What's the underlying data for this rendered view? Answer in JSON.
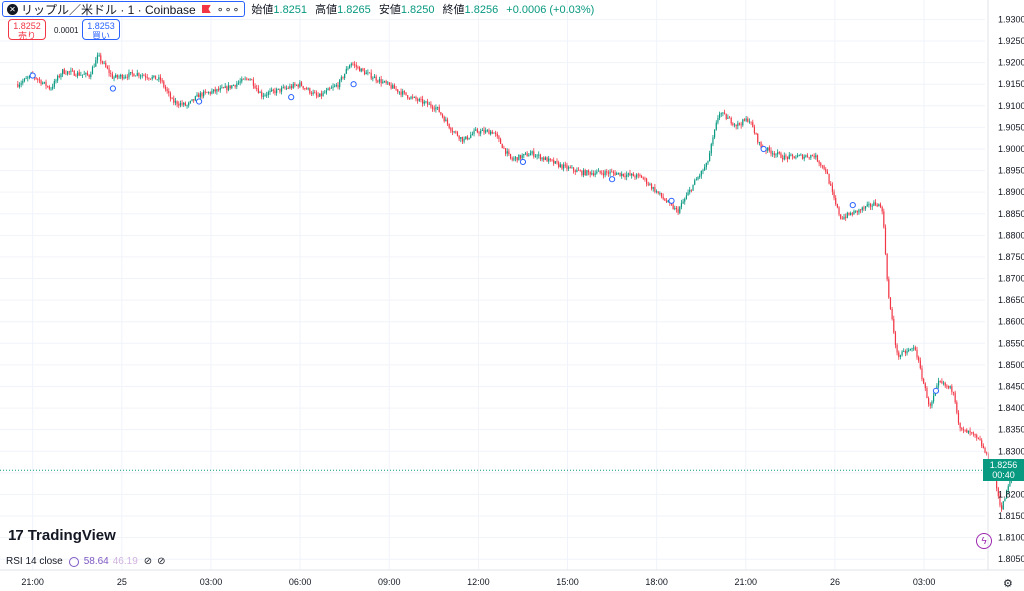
{
  "header": {
    "symbol_title": "リップル／米ドル · 1 · Coinbase",
    "more": "∘∘∘",
    "ohlc": [
      {
        "label": "始値",
        "value": "1.8251"
      },
      {
        "label": "高値",
        "value": "1.8265"
      },
      {
        "label": "安値",
        "value": "1.8250"
      },
      {
        "label": "終値",
        "value": "1.8256"
      }
    ],
    "change": "+0.0006 (+0.03%)"
  },
  "trade": {
    "sell_price": "1.8252",
    "sell_label": "売り",
    "spread": "0.0001",
    "buy_price": "1.8253",
    "buy_label": "買い"
  },
  "logo_text": "TradingView",
  "indicator": {
    "name": "RSI 14 close",
    "value1": "58.64",
    "value2": "46.19"
  },
  "last_price": {
    "price": "1.8256",
    "countdown": "00:40"
  },
  "colors": {
    "up": "#089981",
    "down": "#f23645",
    "grid": "#f0f3fa",
    "accent": "#2962ff"
  },
  "chart_data": {
    "type": "candlestick",
    "x_ticks": [
      {
        "label": "21:00",
        "t": 0.5
      },
      {
        "label": "25",
        "t": 3.5
      },
      {
        "label": "03:00",
        "t": 6.5
      },
      {
        "label": "06:00",
        "t": 9.5
      },
      {
        "label": "09:00",
        "t": 12.5
      },
      {
        "label": "12:00",
        "t": 15.5
      },
      {
        "label": "15:00",
        "t": 18.5
      },
      {
        "label": "18:00",
        "t": 21.5
      },
      {
        "label": "21:00",
        "t": 24.5
      },
      {
        "label": "26",
        "t": 27.5
      },
      {
        "label": "03:00",
        "t": 30.5
      }
    ],
    "y_ticks": [
      "1.9300",
      "1.9250",
      "1.9200",
      "1.9150",
      "1.9100",
      "1.9050",
      "1.9000",
      "1.8950",
      "1.8900",
      "1.8850",
      "1.8800",
      "1.8750",
      "1.8700",
      "1.8650",
      "1.8600",
      "1.8550",
      "1.8500",
      "1.8450",
      "1.8400",
      "1.8350",
      "1.8300",
      "1.8250",
      "1.8200",
      "1.8150",
      "1.8100",
      "1.8050"
    ],
    "ylim": [
      1.8025,
      1.9345
    ],
    "xlim": [
      -0.6,
      32.55
    ],
    "last_price": 1.8256,
    "path": [
      [
        0,
        1.915
      ],
      [
        0.5,
        1.917
      ],
      [
        1.1,
        1.914
      ],
      [
        1.5,
        1.918
      ],
      [
        2.4,
        1.917
      ],
      [
        2.7,
        1.9215
      ],
      [
        3.2,
        1.9165
      ],
      [
        4.0,
        1.9175
      ],
      [
        4.8,
        1.916
      ],
      [
        5.2,
        1.911
      ],
      [
        5.7,
        1.91
      ],
      [
        6.1,
        1.9125
      ],
      [
        7.0,
        1.914
      ],
      [
        7.8,
        1.9165
      ],
      [
        8.2,
        1.9125
      ],
      [
        9.0,
        1.914
      ],
      [
        9.5,
        1.915
      ],
      [
        10.1,
        1.912
      ],
      [
        10.8,
        1.915
      ],
      [
        11.2,
        1.92
      ],
      [
        11.6,
        1.918
      ],
      [
        12.4,
        1.915
      ],
      [
        13.2,
        1.912
      ],
      [
        14.1,
        1.9095
      ],
      [
        14.6,
        1.9045
      ],
      [
        15.0,
        1.902
      ],
      [
        15.4,
        1.904
      ],
      [
        16.0,
        1.904
      ],
      [
        16.6,
        1.8975
      ],
      [
        17.3,
        1.899
      ],
      [
        18.3,
        1.896
      ],
      [
        19.0,
        1.8945
      ],
      [
        20.0,
        1.8945
      ],
      [
        21.0,
        1.8935
      ],
      [
        21.8,
        1.888
      ],
      [
        22.2,
        1.8855
      ],
      [
        22.8,
        1.8925
      ],
      [
        23.2,
        1.8965
      ],
      [
        23.6,
        1.9085
      ],
      [
        24.2,
        1.9055
      ],
      [
        24.6,
        1.907
      ],
      [
        25.0,
        1.9005
      ],
      [
        25.8,
        1.898
      ],
      [
        26.8,
        1.8985
      ],
      [
        27.2,
        1.895
      ],
      [
        27.5,
        1.8875
      ],
      [
        27.7,
        1.884
      ],
      [
        28.4,
        1.886
      ],
      [
        28.9,
        1.8875
      ],
      [
        29.1,
        1.886
      ],
      [
        29.3,
        1.866
      ],
      [
        29.6,
        1.852
      ],
      [
        29.9,
        1.853
      ],
      [
        30.2,
        1.854
      ],
      [
        30.4,
        1.848
      ],
      [
        30.7,
        1.84
      ],
      [
        31.0,
        1.846
      ],
      [
        31.5,
        1.844
      ],
      [
        31.7,
        1.835
      ],
      [
        32.1,
        1.834
      ],
      [
        32.4,
        1.832
      ],
      [
        32.8,
        1.826
      ],
      [
        33.1,
        1.8165
      ],
      [
        33.5,
        1.8256
      ]
    ],
    "markers": [
      [
        0.5,
        1.917
      ],
      [
        3.2,
        1.914
      ],
      [
        6.1,
        1.911
      ],
      [
        9.2,
        1.912
      ],
      [
        11.3,
        1.915
      ],
      [
        17.0,
        1.897
      ],
      [
        20.0,
        1.893
      ],
      [
        22.0,
        1.888
      ],
      [
        25.1,
        1.9
      ],
      [
        28.1,
        1.887
      ],
      [
        30.9,
        1.844
      ]
    ]
  }
}
